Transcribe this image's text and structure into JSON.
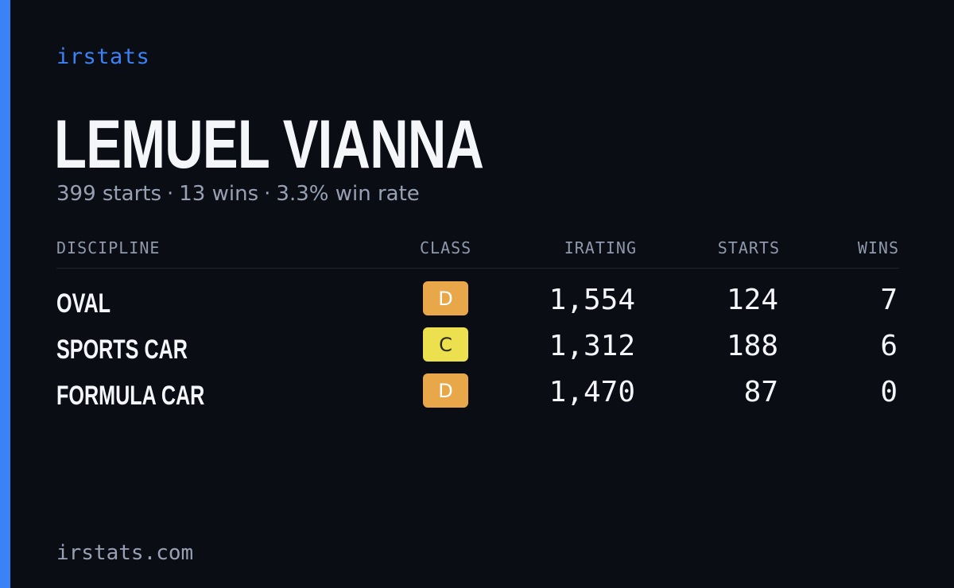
{
  "brand": "irstats",
  "player": {
    "name": "LEMUEL VIANNA",
    "summary": {
      "starts": "399 starts",
      "wins": "13 wins",
      "win_rate": "3.3% win rate",
      "separator": "·"
    }
  },
  "table": {
    "headers": {
      "discipline": "DISCIPLINE",
      "class": "CLASS",
      "irating": "IRATING",
      "starts": "STARTS",
      "wins": "WINS"
    },
    "rows": [
      {
        "discipline": "OVAL",
        "class": "D",
        "class_color": "#e8a84a",
        "irating": "1,554",
        "starts": "124",
        "wins": "7"
      },
      {
        "discipline": "SPORTS CAR",
        "class": "C",
        "class_color": "#ede04e",
        "irating": "1,312",
        "starts": "188",
        "wins": "6"
      },
      {
        "discipline": "FORMULA CAR",
        "class": "D",
        "class_color": "#e8a84a",
        "irating": "1,470",
        "starts": "87",
        "wins": "0"
      }
    ]
  },
  "footer": "irstats.com",
  "colors": {
    "background": "#0a0d14",
    "accent": "#3b82f6",
    "text_primary": "#f4f6fa",
    "text_muted": "#98a1b3"
  }
}
